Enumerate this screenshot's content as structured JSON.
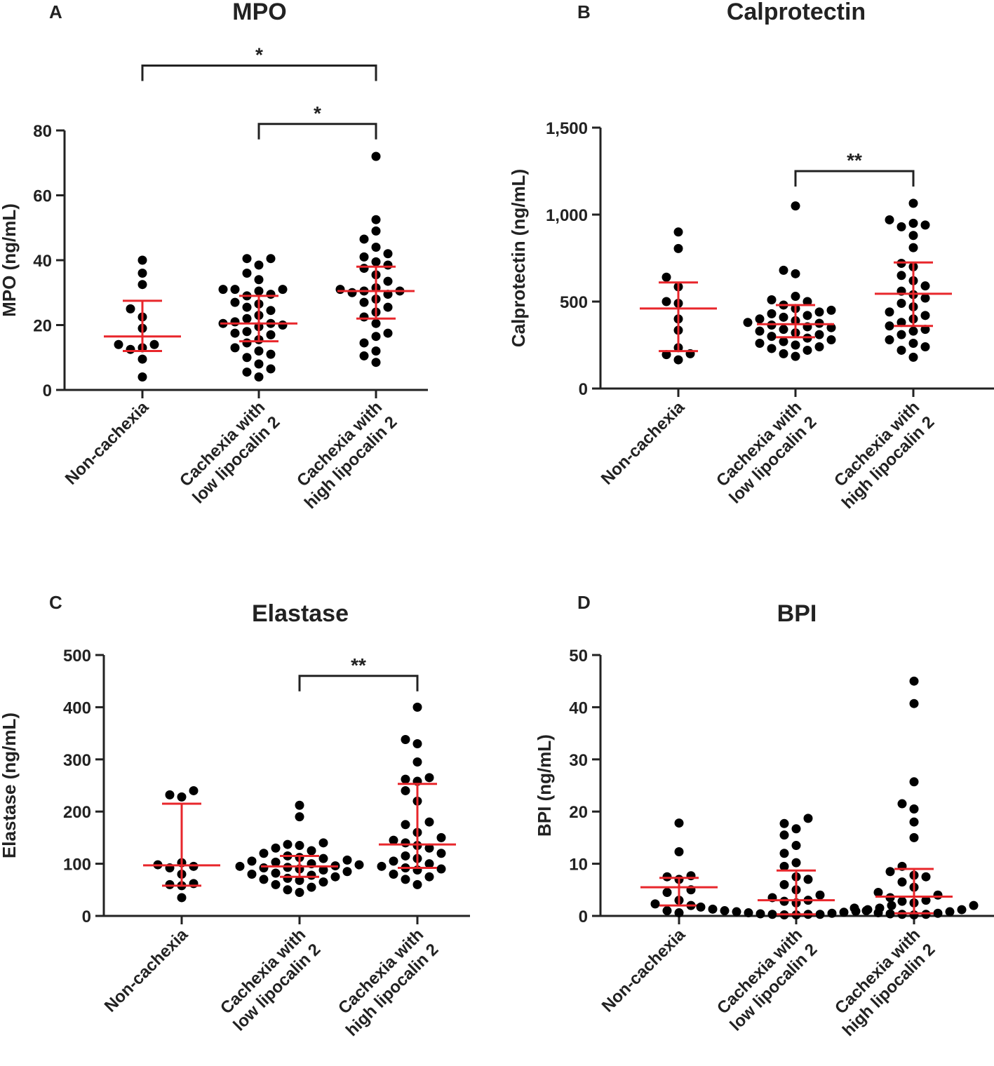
{
  "chart_data": [
    {
      "type": "scatter",
      "panel_letter": "A",
      "title": "MPO",
      "ylabel": "MPO (ng/mL)",
      "ylim": [
        0,
        80
      ],
      "yticks": [
        0,
        20,
        40,
        60,
        80
      ],
      "ytick_labels": [
        "0",
        "20",
        "40",
        "60",
        "80"
      ],
      "categories": [
        [
          "Non-cachexia"
        ],
        [
          "Cachexia with",
          "low lipocalin 2"
        ],
        [
          "Cachexia with",
          "high lipocalin 2"
        ]
      ],
      "colors": {
        "points": "#000000",
        "summary": "#e8262b",
        "axis": "#222222"
      },
      "groups": [
        {
          "values": [
            40,
            36,
            32.5,
            25,
            22.5,
            19,
            14,
            14,
            13,
            12.5,
            9.5,
            4
          ],
          "median": 16.5,
          "q1": 12,
          "q3": 27.5
        },
        {
          "values": [
            40.5,
            40.5,
            38.5,
            36,
            34,
            31,
            31,
            31,
            30.5,
            29.5,
            29,
            27,
            26.5,
            25.5,
            24.5,
            23,
            22,
            21,
            20.5,
            20.5,
            20,
            19.5,
            18,
            17.5,
            17,
            15.5,
            14.5,
            13,
            12,
            11,
            10,
            8,
            6.5,
            5.5,
            4
          ],
          "median": 20.5,
          "q1": 15,
          "q3": 29
        },
        {
          "values": [
            72,
            52.5,
            49,
            46.5,
            44,
            42,
            41,
            39.5,
            38.5,
            37.5,
            35.5,
            33.5,
            31.5,
            31,
            30.5,
            30.5,
            30,
            29.5,
            28,
            27,
            25.5,
            24,
            22.5,
            20.5,
            17.5,
            16.5,
            14.5,
            12,
            10.5,
            8.5
          ],
          "median": 30.5,
          "q1": 22,
          "q3": 38
        }
      ],
      "significance": [
        {
          "from": 0,
          "to": 2,
          "label": "*",
          "level": 100
        },
        {
          "from": 1,
          "to": 2,
          "label": "*",
          "level": 82
        }
      ]
    },
    {
      "type": "scatter",
      "panel_letter": "B",
      "title": "Calprotectin",
      "ylabel": "Calprotectin (ng/mL)",
      "ylim": [
        0,
        1500
      ],
      "yticks": [
        0,
        500,
        1000,
        1500
      ],
      "ytick_labels": [
        "0",
        "500",
        "1,000",
        "1,500"
      ],
      "categories": [
        [
          "Non-cachexia"
        ],
        [
          "Cachexia with",
          "low lipocalin 2"
        ],
        [
          "Cachexia with",
          "high lipocalin 2"
        ]
      ],
      "colors": {
        "points": "#000000",
        "summary": "#e8262b",
        "axis": "#222222"
      },
      "groups": [
        {
          "values": [
            900,
            805,
            640,
            585,
            500,
            490,
            400,
            335,
            235,
            200,
            195,
            165
          ],
          "median": 460,
          "q1": 215,
          "q3": 610
        },
        {
          "values": [
            1050,
            680,
            660,
            530,
            510,
            500,
            480,
            460,
            450,
            440,
            430,
            420,
            410,
            400,
            390,
            380,
            375,
            365,
            355,
            350,
            340,
            330,
            320,
            310,
            300,
            290,
            280,
            270,
            260,
            250,
            240,
            230,
            220,
            200,
            185
          ],
          "median": 370,
          "q1": 295,
          "q3": 480
        },
        {
          "values": [
            1065,
            970,
            950,
            940,
            930,
            880,
            810,
            720,
            700,
            650,
            620,
            590,
            560,
            540,
            520,
            490,
            470,
            440,
            420,
            400,
            380,
            360,
            340,
            330,
            310,
            280,
            260,
            240,
            220,
            180
          ],
          "median": 545,
          "q1": 360,
          "q3": 725
        }
      ],
      "significance": [
        {
          "from": 1,
          "to": 2,
          "label": "**",
          "level": 1250
        }
      ]
    },
    {
      "type": "scatter",
      "panel_letter": "C",
      "title": "Elastase",
      "ylabel": "Elastase (ng/mL)",
      "ylim": [
        0,
        500
      ],
      "yticks": [
        0,
        100,
        200,
        300,
        400,
        500
      ],
      "ytick_labels": [
        "0",
        "100",
        "200",
        "300",
        "400",
        "500"
      ],
      "categories": [
        [
          "Non-cachexia"
        ],
        [
          "Cachexia with",
          "low lipocalin 2"
        ],
        [
          "Cachexia with",
          "high lipocalin 2"
        ]
      ],
      "colors": {
        "points": "#000000",
        "summary": "#e8262b",
        "axis": "#222222"
      },
      "groups": [
        {
          "values": [
            240,
            232,
            228,
            102,
            98,
            95,
            92,
            80,
            62,
            60,
            58,
            35
          ],
          "median": 97,
          "q1": 58,
          "q3": 215
        },
        {
          "values": [
            212,
            190,
            140,
            137,
            135,
            130,
            125,
            120,
            115,
            112,
            110,
            107,
            105,
            103,
            100,
            98,
            96,
            95,
            93,
            92,
            90,
            88,
            85,
            82,
            80,
            78,
            75,
            72,
            70,
            68,
            65,
            60,
            55,
            50,
            45
          ],
          "median": 95,
          "q1": 75,
          "q3": 115
        },
        {
          "values": [
            400,
            338,
            330,
            295,
            265,
            262,
            258,
            240,
            220,
            180,
            175,
            160,
            150,
            145,
            140,
            135,
            130,
            120,
            115,
            110,
            105,
            100,
            95,
            92,
            90,
            88,
            80,
            75,
            70,
            60
          ],
          "median": 137,
          "q1": 92,
          "q3": 253
        }
      ],
      "significance": [
        {
          "from": 1,
          "to": 2,
          "label": "**",
          "level": 460
        }
      ]
    },
    {
      "type": "scatter",
      "panel_letter": "D",
      "title": "BPI",
      "ylabel": "BPI (ng/mL)",
      "ylim": [
        0,
        50
      ],
      "yticks": [
        0,
        10,
        20,
        30,
        40,
        50
      ],
      "ytick_labels": [
        "0",
        "10",
        "20",
        "30",
        "40",
        "50"
      ],
      "categories": [
        [
          "Non-cachexia"
        ],
        [
          "Cachexia with",
          "low lipocalin 2"
        ],
        [
          "Cachexia with",
          "high lipocalin 2"
        ]
      ],
      "colors": {
        "points": "#000000",
        "summary": "#e8262b",
        "axis": "#222222"
      },
      "groups": [
        {
          "values": [
            17.8,
            12.3,
            7.7,
            7.5,
            7,
            5,
            4.5,
            3,
            2.3,
            2,
            1,
            0.6
          ],
          "median": 5.5,
          "q1": 2,
          "q3": 7.3
        },
        {
          "values": [
            18.7,
            17.7,
            16.7,
            15.5,
            13.5,
            12,
            10.2,
            9.5,
            7.5,
            7,
            6,
            5,
            4,
            3.5,
            3,
            2.8,
            2.5,
            2,
            1.7,
            1.5,
            1.3,
            1.2,
            1,
            0.9,
            0.8,
            0.7,
            0.6,
            0.5,
            0.4,
            0.3,
            0.3,
            0.3,
            0.2,
            0.2
          ],
          "median": 3,
          "q1": 0.3,
          "q3": 8.7
        },
        {
          "values": [
            45,
            40.7,
            25.7,
            21.5,
            20.5,
            18,
            15,
            9.5,
            8.5,
            7.8,
            7.5,
            6.5,
            5.5,
            4.5,
            4,
            3.5,
            3,
            2.8,
            2.5,
            2,
            1.5,
            1.2,
            1,
            0.8,
            0.6,
            0.5,
            0.4,
            0.3,
            0.3,
            0.2
          ],
          "median": 3.7,
          "q1": 0.5,
          "q3": 9
        }
      ],
      "significance": []
    }
  ]
}
